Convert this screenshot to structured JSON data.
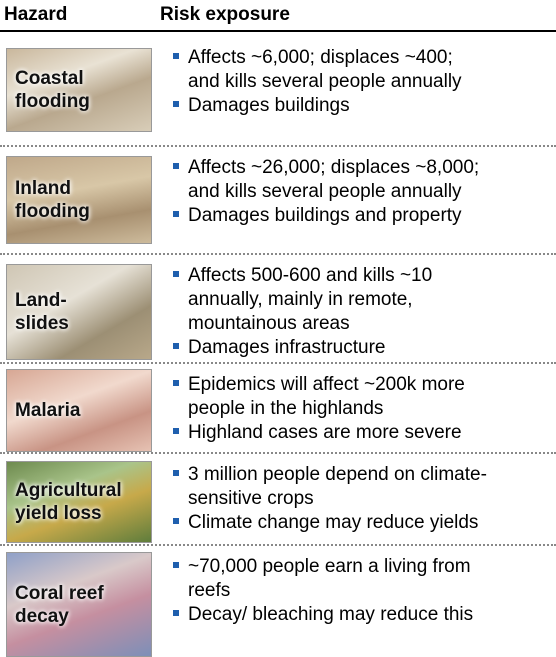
{
  "header": {
    "hazard": "Hazard",
    "risk": "Risk exposure"
  },
  "rows": [
    {
      "hazard": [
        "Coastal",
        "flooding"
      ],
      "bullets": [
        [
          "Affects ~6,000; displaces ~400;",
          "and kills several people annually"
        ],
        [
          "Damages buildings"
        ]
      ]
    },
    {
      "hazard": [
        "Inland",
        "flooding"
      ],
      "bullets": [
        [
          "Affects ~26,000; displaces ~8,000;",
          "and kills several people annually"
        ],
        [
          "Damages buildings and property"
        ]
      ]
    },
    {
      "hazard": [
        "Land-",
        "slides"
      ],
      "bullets": [
        [
          "Affects 500-600 and kills ~10",
          "annually, mainly in remote,",
          "mountainous areas"
        ],
        [
          "Damages infrastructure"
        ]
      ]
    },
    {
      "hazard": [
        "Malaria"
      ],
      "bullets": [
        [
          "Epidemics will affect ~200k more",
          "people in the highlands"
        ],
        [
          "Highland cases are more severe"
        ]
      ]
    },
    {
      "hazard": [
        "Agricultural",
        "yield loss"
      ],
      "bullets": [
        [
          "3 million people depend on climate-",
          "sensitive crops"
        ],
        [
          "Climate change may reduce yields"
        ]
      ]
    },
    {
      "hazard": [
        "Coral reef",
        "decay"
      ],
      "bullets": [
        [
          "~70,000 people earn a living from",
          "reefs"
        ],
        [
          "Decay/ bleaching may reduce this"
        ]
      ]
    }
  ]
}
